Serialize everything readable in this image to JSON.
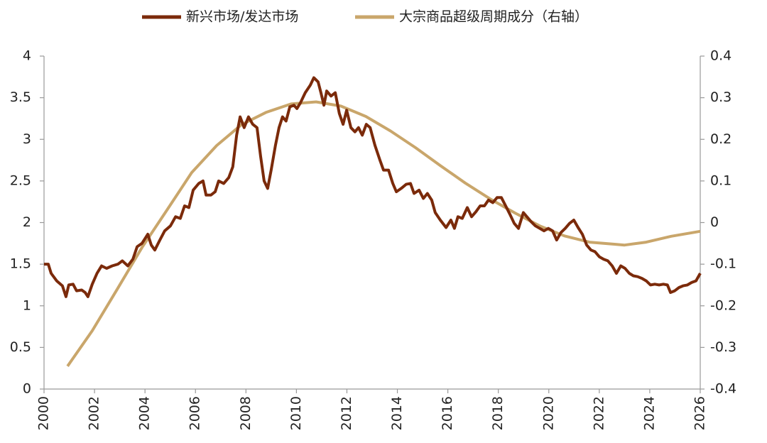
{
  "chart_data": {
    "type": "line",
    "x": [
      2000.0,
      2000.17,
      2000.28,
      2000.5,
      2000.73,
      2000.87,
      2000.98,
      2001.15,
      2001.29,
      2001.49,
      2001.63,
      2001.74,
      2001.91,
      2002.1,
      2002.28,
      2002.48,
      2002.7,
      2002.93,
      2003.1,
      2003.32,
      2003.52,
      2003.69,
      2003.88,
      2004.11,
      2004.25,
      2004.39,
      2004.59,
      2004.78,
      2005.01,
      2005.21,
      2005.4,
      2005.57,
      2005.74,
      2005.91,
      2006.13,
      2006.3,
      2006.42,
      2006.61,
      2006.78,
      2006.92,
      2007.12,
      2007.32,
      2007.48,
      2007.63,
      2007.77,
      2007.93,
      2008.1,
      2008.27,
      2008.44,
      2008.58,
      2008.72,
      2008.86,
      2009.0,
      2009.17,
      2009.31,
      2009.45,
      2009.59,
      2009.74,
      2009.9,
      2010.02,
      2010.16,
      2010.35,
      2010.55,
      2010.69,
      2010.86,
      2010.97,
      2011.09,
      2011.2,
      2011.37,
      2011.54,
      2011.7,
      2011.85,
      2011.99,
      2012.16,
      2012.32,
      2012.46,
      2012.61,
      2012.77,
      2012.92,
      2013.11,
      2013.31,
      2013.45,
      2013.65,
      2013.82,
      2013.96,
      2014.15,
      2014.35,
      2014.52,
      2014.66,
      2014.86,
      2015.03,
      2015.19,
      2015.36,
      2015.5,
      2015.7,
      2015.93,
      2016.12,
      2016.26,
      2016.4,
      2016.57,
      2016.77,
      2016.94,
      2017.11,
      2017.28,
      2017.45,
      2017.61,
      2017.78,
      2017.95,
      2018.12,
      2018.29,
      2018.46,
      2018.63,
      2018.8,
      2018.99,
      2019.13,
      2019.3,
      2019.47,
      2019.64,
      2019.81,
      2019.98,
      2020.15,
      2020.31,
      2020.48,
      2020.65,
      2020.82,
      2020.99,
      2021.16,
      2021.33,
      2021.5,
      2021.67,
      2021.83,
      2022.0,
      2022.17,
      2022.34,
      2022.51,
      2022.68,
      2022.85,
      2023.02,
      2023.19,
      2023.35,
      2023.52,
      2023.69,
      2023.86,
      2024.03,
      2024.2,
      2024.37,
      2024.54,
      2024.7,
      2024.82,
      2024.99,
      2025.16,
      2025.32,
      2025.49,
      2025.66,
      2025.83,
      2026.0
    ],
    "series": [
      {
        "name": "新兴市场/发达市场",
        "color": "#7b2a0a",
        "axis": "y",
        "values": [
          1.5,
          1.5,
          1.39,
          1.3,
          1.24,
          1.11,
          1.25,
          1.26,
          1.18,
          1.19,
          1.16,
          1.11,
          1.26,
          1.39,
          1.48,
          1.45,
          1.48,
          1.5,
          1.54,
          1.48,
          1.56,
          1.71,
          1.75,
          1.86,
          1.73,
          1.67,
          1.79,
          1.9,
          1.96,
          2.07,
          2.05,
          2.2,
          2.18,
          2.39,
          2.47,
          2.5,
          2.33,
          2.33,
          2.37,
          2.5,
          2.47,
          2.54,
          2.67,
          3.05,
          3.27,
          3.14,
          3.27,
          3.18,
          3.14,
          2.8,
          2.5,
          2.41,
          2.63,
          2.93,
          3.14,
          3.27,
          3.22,
          3.39,
          3.41,
          3.37,
          3.44,
          3.56,
          3.65,
          3.74,
          3.69,
          3.56,
          3.41,
          3.58,
          3.52,
          3.56,
          3.31,
          3.18,
          3.35,
          3.14,
          3.09,
          3.14,
          3.05,
          3.18,
          3.14,
          2.93,
          2.75,
          2.63,
          2.63,
          2.47,
          2.37,
          2.41,
          2.46,
          2.47,
          2.35,
          2.39,
          2.29,
          2.35,
          2.27,
          2.12,
          2.03,
          1.94,
          2.03,
          1.93,
          2.07,
          2.05,
          2.18,
          2.07,
          2.13,
          2.2,
          2.2,
          2.27,
          2.24,
          2.3,
          2.3,
          2.2,
          2.1,
          1.99,
          1.93,
          2.12,
          2.07,
          2.01,
          1.96,
          1.93,
          1.9,
          1.93,
          1.9,
          1.79,
          1.88,
          1.93,
          1.99,
          2.03,
          1.94,
          1.86,
          1.73,
          1.67,
          1.65,
          1.59,
          1.56,
          1.54,
          1.48,
          1.39,
          1.48,
          1.45,
          1.39,
          1.36,
          1.35,
          1.33,
          1.3,
          1.25,
          1.26,
          1.25,
          1.26,
          1.25,
          1.16,
          1.18,
          1.22,
          1.24,
          1.25,
          1.28,
          1.3,
          1.39
        ]
      }
    ],
    "series2": {
      "name": "大宗商品超级周期成分（右轴）",
      "color": "#c9a66b",
      "axis": "y2",
      "x": [
        2000.93,
        2001.91,
        2002.9,
        2003.88,
        2004.87,
        2005.85,
        2006.84,
        2007.82,
        2008.81,
        2009.79,
        2010.78,
        2011.76,
        2012.75,
        2013.73,
        2014.72,
        2015.7,
        2016.69,
        2017.67,
        2018.66,
        2019.64,
        2020.62,
        2021.61,
        2022.6,
        2023.0,
        2023.86,
        2024.85,
        2026.0
      ],
      "values": [
        -0.345,
        -0.26,
        -0.16,
        -0.06,
        0.03,
        0.12,
        0.185,
        0.235,
        0.265,
        0.285,
        0.29,
        0.28,
        0.255,
        0.22,
        0.18,
        0.137,
        0.095,
        0.057,
        0.023,
        -0.008,
        -0.032,
        -0.047,
        -0.052,
        -0.054,
        -0.047,
        -0.033,
        -0.021
      ]
    },
    "xlim": [
      2000,
      2026
    ],
    "xticks": [
      2000,
      2002,
      2004,
      2006,
      2008,
      2010,
      2012,
      2014,
      2016,
      2018,
      2020,
      2022,
      2024,
      2026
    ],
    "ylim": [
      0,
      4
    ],
    "yticks": [
      0,
      0.5,
      1,
      1.5,
      2,
      2.5,
      3,
      3.5,
      4
    ],
    "y2lim": [
      -0.4,
      0.4
    ],
    "y2ticks": [
      -0.4,
      -0.3,
      -0.2,
      -0.1,
      0,
      0.1,
      0.2,
      0.3,
      0.4
    ],
    "legend": "top",
    "grid": false
  }
}
